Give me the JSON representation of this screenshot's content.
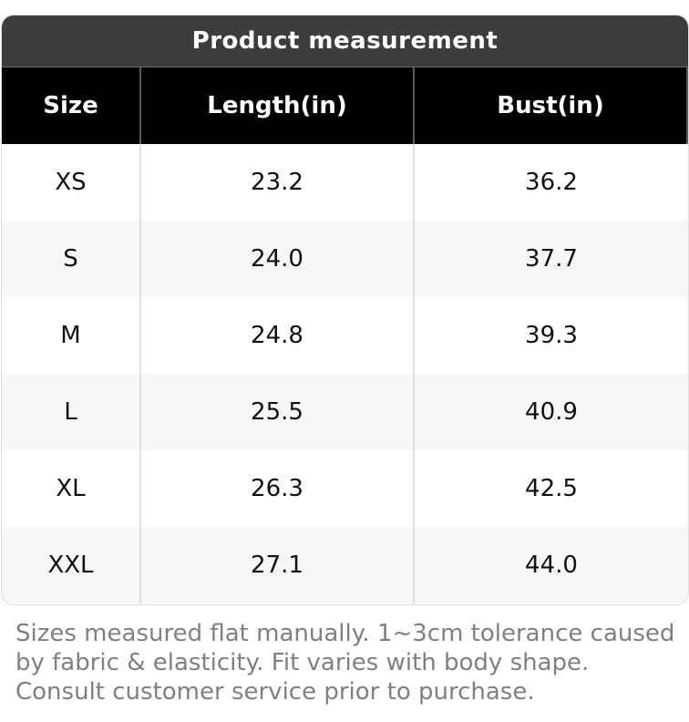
{
  "table": {
    "title": "Product measurement",
    "headers": [
      "Size",
      "Length(in)",
      "Bust(in)"
    ],
    "rows": [
      [
        "XS",
        "23.2",
        "36.2"
      ],
      [
        "S",
        "24.0",
        "37.7"
      ],
      [
        "M",
        "24.8",
        "39.3"
      ],
      [
        "L",
        "25.5",
        "40.9"
      ],
      [
        "XL",
        "26.3",
        "42.5"
      ],
      [
        "XXL",
        "27.1",
        "44.0"
      ]
    ]
  },
  "footnote": "Sizes measured flat manually. 1~3cm tolerance caused by fabric & elasticity. Fit varies with body shape. Consult customer service prior to purchase.",
  "colors": {
    "title_bg": "#3d3d3d",
    "header_bg": "#000000",
    "row_alt_bg": "#f7f7f7",
    "footnote_text": "#808080"
  }
}
